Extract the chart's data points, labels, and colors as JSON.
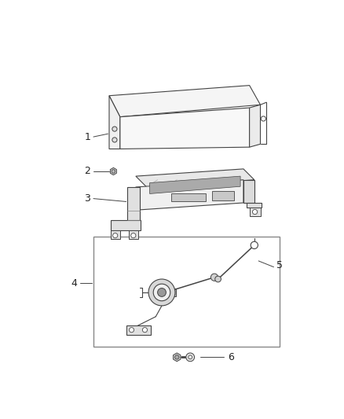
{
  "background_color": "#ffffff",
  "fig_width": 4.38,
  "fig_height": 5.33,
  "dpi": 100,
  "line_color": "#444444",
  "light_gray": "#cccccc",
  "mid_gray": "#999999",
  "dark_gray": "#666666"
}
